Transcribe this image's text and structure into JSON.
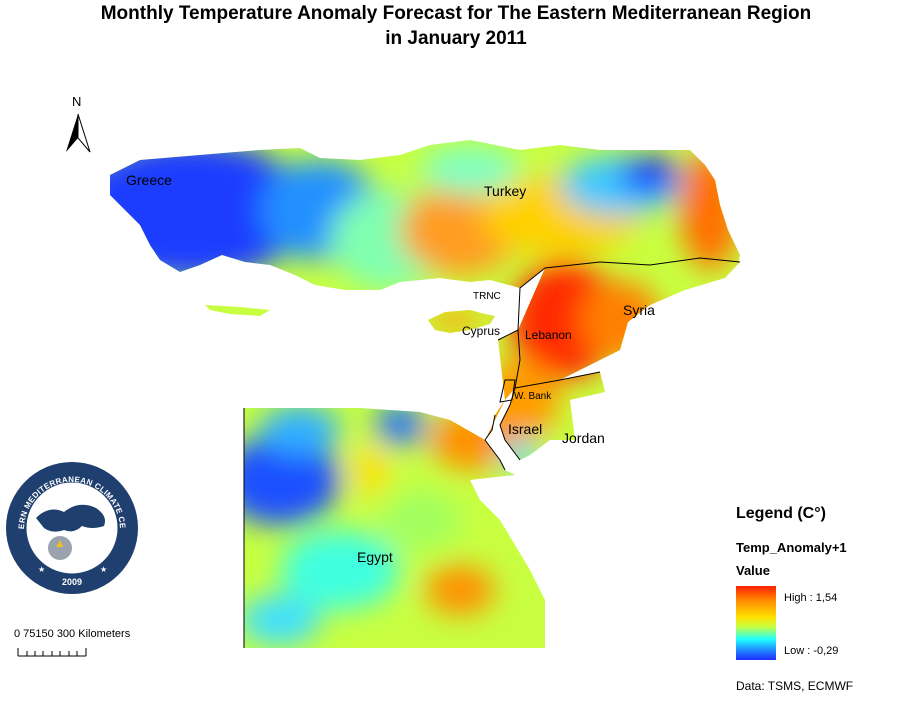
{
  "title": {
    "line1": "Monthly Temperature Anomaly Forecast for  The Eastern Mediterranean Region",
    "line2": "in January 2011"
  },
  "north_arrow": {
    "letter": "N",
    "icon": "north-arrow-icon"
  },
  "countries": {
    "greece": "Greece",
    "turkey": "Turkey",
    "syria": "Syria",
    "lebanon": "Lebanon",
    "cyprus": "Cyprus",
    "trnc": "TRNC",
    "west_bank": "W. Bank",
    "israel": "Israel",
    "jordan": "Jordan",
    "egypt": "Egypt"
  },
  "legend": {
    "heading": "Legend (C°)",
    "layer": "Temp_Anomaly+1",
    "value_label": "Value",
    "high": "High : 1,54",
    "low": "Low : -0,29",
    "colors": [
      "#ff2000",
      "#ff8c00",
      "#ffe000",
      "#c8ff40",
      "#20ffff",
      "#2080ff",
      "#1e2cff"
    ]
  },
  "scale_bar": {
    "text": "0  75150   300 Kilometers"
  },
  "credit": "Data:  TSMS, ECMWF",
  "logo": {
    "text": "EASTERN MEDITERRANEAN CLIMATE CENTRE",
    "year": "2009",
    "colors": {
      "ring": "#1f3f6e",
      "inner": "#ffffff"
    }
  }
}
